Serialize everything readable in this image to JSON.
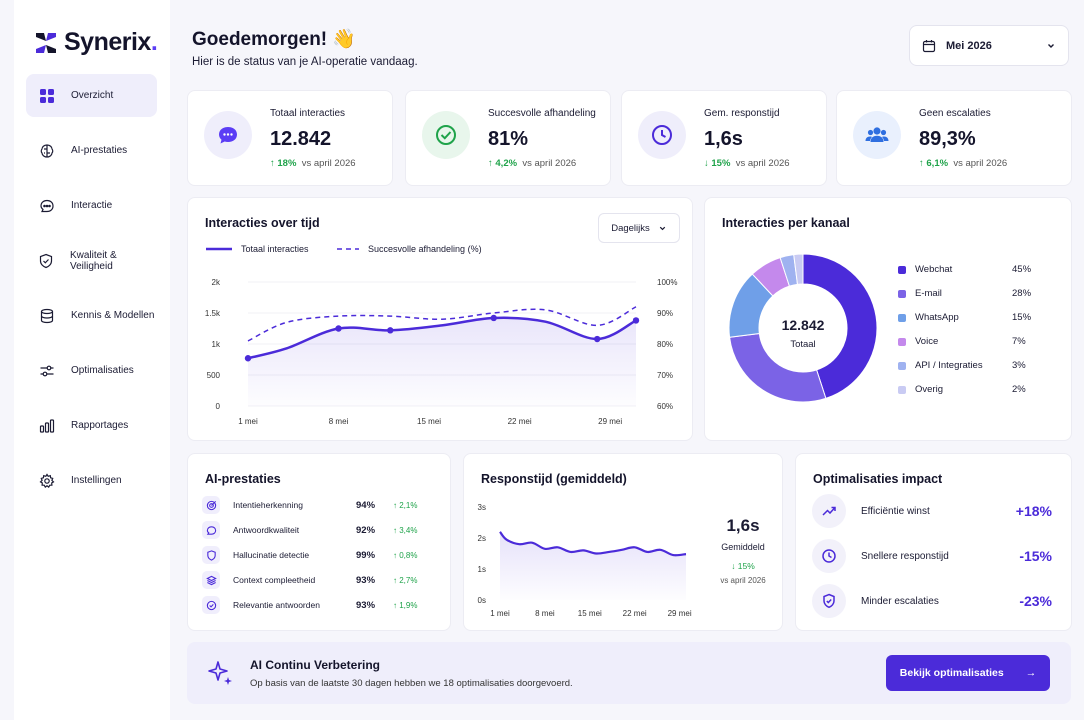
{
  "app": {
    "name": "Synerix",
    "dot": "."
  },
  "sidebar": {
    "items": [
      {
        "label": "Overzicht",
        "icon": "grid-icon",
        "active": true
      },
      {
        "label": "AI-prestaties",
        "icon": "brain-icon"
      },
      {
        "label": "Interactie",
        "icon": "chat-icon"
      },
      {
        "label": "Kwaliteit & Veiligheid",
        "icon": "shield-icon"
      },
      {
        "label": "Kennis & Modellen",
        "icon": "database-icon"
      },
      {
        "label": "Optimalisaties",
        "icon": "sliders-icon"
      },
      {
        "label": "Rapportages",
        "icon": "bar-chart-icon"
      },
      {
        "label": "Instellingen",
        "icon": "gear-icon"
      }
    ]
  },
  "header": {
    "greeting": "Goedemorgen! 👋",
    "subtitle": "Hier is de status van je AI-operatie vandaag.",
    "date": "Mei 2026"
  },
  "kpis": [
    {
      "label": "Totaal interacties",
      "value": "12.842",
      "delta": "18%",
      "dir": "↑",
      "compare": "vs april 2026",
      "icon": "chat-bubble-icon",
      "bg": "#efeefb",
      "fg": "#4b2bd9"
    },
    {
      "label": "Succesvolle afhandeling",
      "value": "81%",
      "delta": "4,2%",
      "dir": "↑",
      "compare": "vs april 2026",
      "icon": "check-circle-icon",
      "bg": "#e8f6ec",
      "fg": "#1fa34a"
    },
    {
      "label": "Gem. responstijd",
      "value": "1,6s",
      "delta": "15%",
      "dir": "↓",
      "compare": "vs april 2026",
      "icon": "clock-icon",
      "bg": "#efeefb",
      "fg": "#4b2bd9"
    },
    {
      "label": "Geen escalaties",
      "value": "89,3%",
      "delta": "6,1%",
      "dir": "↑",
      "compare": "vs april 2026",
      "icon": "users-icon",
      "bg": "#e9f0fd",
      "fg": "#2f6fe0"
    }
  ],
  "interactions_chart": {
    "title": "Interacties over tijd",
    "period": "Dagelijks",
    "legend_total": "Totaal interacties",
    "legend_success": "Succesvolle afhandeling (%)"
  },
  "channels": {
    "title": "Interacties per kanaal",
    "center_value": "12.842",
    "center_label": "Totaal"
  },
  "ai_performance": {
    "title": "AI-prestaties",
    "rows": [
      {
        "label": "Intentieherkenning",
        "value": "94%",
        "delta": "↑ 2,1%",
        "icon": "target-icon"
      },
      {
        "label": "Antwoordkwaliteit",
        "value": "92%",
        "delta": "↑ 3,4%",
        "icon": "message-icon"
      },
      {
        "label": "Hallucinatie detectie",
        "value": "99%",
        "delta": "↑ 0,8%",
        "icon": "shield-icon"
      },
      {
        "label": "Context compleetheid",
        "value": "93%",
        "delta": "↑ 2,7%",
        "icon": "layers-icon"
      },
      {
        "label": "Relevantie antwoorden",
        "value": "93%",
        "delta": "↑ 1,9%",
        "icon": "check-circle-icon"
      }
    ]
  },
  "response_chart": {
    "title": "Responstijd (gemiddeld)",
    "value": "1,6s",
    "value_label": "Gemiddeld",
    "delta": "↓ 15%",
    "compare": "vs april 2026"
  },
  "optimizations": {
    "title": "Optimalisaties impact",
    "rows": [
      {
        "label": "Efficiëntie winst",
        "value": "+18%",
        "icon": "trend-up-icon"
      },
      {
        "label": "Snellere responstijd",
        "value": "-15%",
        "icon": "clock-icon"
      },
      {
        "label": "Minder escalaties",
        "value": "-23%",
        "icon": "shield-icon"
      }
    ]
  },
  "banner": {
    "title": "AI Continu Verbetering",
    "text": "Op basis van de laatste 30 dagen hebben we 18 optimalisaties doorgevoerd.",
    "button": "Bekijk optimalisaties",
    "arrow": "→"
  },
  "chart_data": [
    {
      "type": "line",
      "x": [
        "1 mei",
        "8 mei",
        "15 mei",
        "22 mei",
        "29 mei"
      ],
      "ylim": [
        0,
        2000
      ],
      "y2lim": [
        60,
        100
      ],
      "yticks": [
        "0",
        "500",
        "1k",
        "1.5k",
        "2k"
      ],
      "y2ticks": [
        "60%",
        "70%",
        "80%",
        "90%",
        "100%"
      ],
      "series": [
        {
          "name": "Totaal interacties",
          "axis": "left",
          "x": [
            1,
            4,
            8,
            12,
            16,
            20,
            24,
            28,
            31
          ],
          "values": [
            770,
            930,
            1250,
            1220,
            1300,
            1420,
            1360,
            1080,
            1380
          ],
          "color": "#4b2bd9"
        },
        {
          "name": "Succesvolle afhandeling (%)",
          "axis": "right",
          "x": [
            1,
            4,
            8,
            12,
            16,
            20,
            24,
            28,
            31
          ],
          "values": [
            81,
            87,
            89,
            89,
            88,
            90,
            91,
            86,
            92
          ],
          "color": "#4b2bd9",
          "dashed": true
        }
      ]
    },
    {
      "type": "pie",
      "categories": [
        "Webchat",
        "E-mail",
        "WhatsApp",
        "Voice",
        "API / Integraties",
        "Overig"
      ],
      "values": [
        45,
        28,
        15,
        7,
        3,
        2
      ],
      "labels": [
        "45%",
        "28%",
        "15%",
        "7%",
        "3%",
        "2%"
      ],
      "colors": [
        "#4b2bd9",
        "#7b63e6",
        "#6f9fe8",
        "#c489ec",
        "#9fb2f0",
        "#c9cbf3"
      ]
    },
    {
      "type": "line",
      "x": [
        "1 mei",
        "8 mei",
        "15 mei",
        "22 mei",
        "29 mei"
      ],
      "yticks": [
        "0s",
        "1s",
        "2s",
        "3s"
      ],
      "ylim": [
        0,
        3
      ],
      "series": [
        {
          "name": "Responstijd",
          "x": [
            1,
            2,
            4,
            6,
            8,
            10,
            12,
            14,
            16,
            18,
            20,
            22,
            24,
            26,
            28,
            30
          ],
          "values": [
            2.2,
            1.95,
            1.8,
            1.85,
            1.65,
            1.7,
            1.55,
            1.6,
            1.5,
            1.55,
            1.62,
            1.7,
            1.55,
            1.62,
            1.45,
            1.48
          ],
          "color": "#4b2bd9"
        }
      ]
    }
  ]
}
